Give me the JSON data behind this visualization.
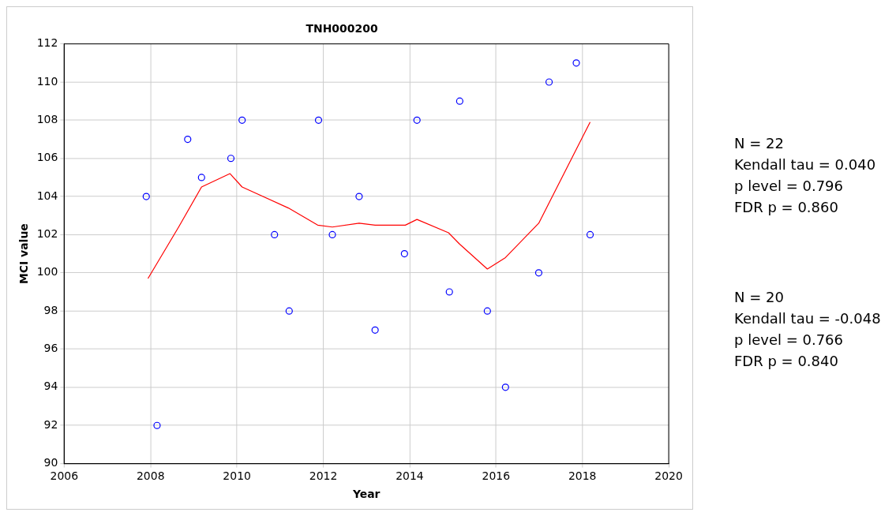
{
  "chart_data": {
    "type": "scatter",
    "title": "TNH000200",
    "xlabel": "Year",
    "ylabel": "MCI value",
    "xlim": [
      2006,
      2020
    ],
    "xticks": [
      2006,
      2008,
      2010,
      2012,
      2014,
      2016,
      2018,
      2020
    ],
    "ylim": [
      90,
      112
    ],
    "yticks": [
      90,
      92,
      94,
      96,
      98,
      100,
      102,
      104,
      106,
      108,
      110,
      112
    ],
    "grid": true,
    "legend": false,
    "series": [
      {
        "type": "scatter",
        "color": "#0000ff",
        "marker": "circle",
        "x": [
          2007.9,
          2008.15,
          2008.86,
          2009.18,
          2009.86,
          2010.12,
          2010.87,
          2011.21,
          2011.89,
          2012.21,
          2012.83,
          2013.2,
          2013.88,
          2014.17,
          2014.92,
          2015.16,
          2015.8,
          2016.22,
          2016.99,
          2017.23,
          2017.86,
          2018.18
        ],
        "values": [
          104,
          92,
          107,
          105,
          106,
          108,
          102,
          98,
          108,
          102,
          104,
          97,
          101,
          108,
          99,
          109,
          98,
          94,
          100,
          110,
          111,
          102
        ]
      },
      {
        "type": "line",
        "color": "#ff0000",
        "marker": "none",
        "x": [
          2007.94,
          2008.65,
          2009.18,
          2009.84,
          2010.12,
          2011.19,
          2011.87,
          2012.21,
          2012.83,
          2013.2,
          2013.9,
          2014.17,
          2014.9,
          2015.16,
          2015.8,
          2016.22,
          2016.99,
          2018.18
        ],
        "values": [
          99.7,
          102.4,
          104.5,
          105.2,
          104.5,
          103.4,
          102.5,
          102.4,
          102.6,
          102.5,
          102.5,
          102.8,
          102.1,
          101.5,
          100.2,
          100.8,
          102.6,
          107.9
        ]
      }
    ],
    "annotations": [
      "N = 22\nKendall tau = 0.040\np level = 0.796\nFDR p = 0.860",
      "N = 20\nKendall tau = -0.048\np level = 0.766\nFDR p = 0.840"
    ]
  }
}
